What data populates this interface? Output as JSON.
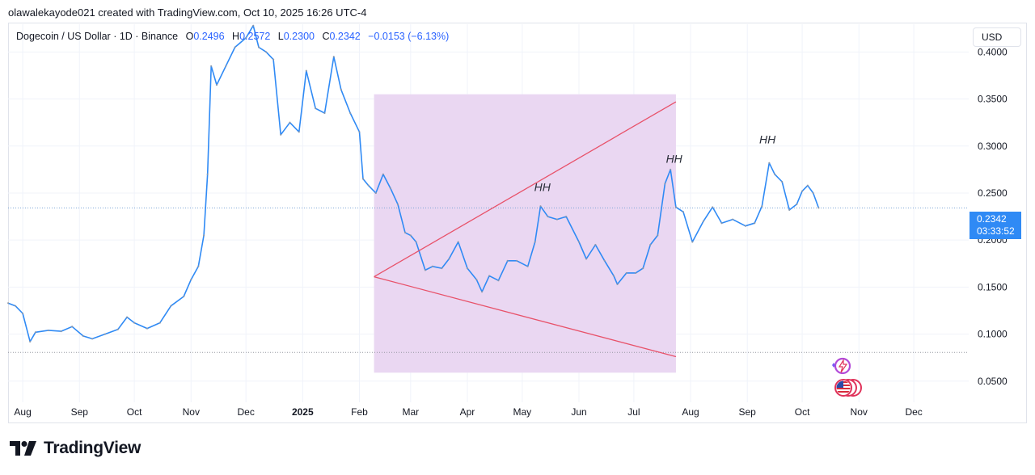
{
  "header": {
    "credit": "olawalekayode021 created with TradingView.com, Oct 10, 2025 16:26 UTC-4"
  },
  "legend": {
    "symbol": "Dogecoin / US Dollar · 1D · Binance",
    "open_label": "O",
    "open": "0.2496",
    "high_label": "H",
    "high": "0.2572",
    "low_label": "L",
    "low": "0.2300",
    "close_label": "C",
    "close": "0.2342",
    "change": "−0.0153 (−6.13%)"
  },
  "currency_button": "USD",
  "last_price": {
    "value": "0.2342",
    "countdown": "03:33:52"
  },
  "brand": {
    "wordmark": "TradingView"
  },
  "colors": {
    "candle_line": "#2f8af5",
    "wick_gray": "#9598a1",
    "zone_fill": "#e9d5f1",
    "trendline": "#e8526a",
    "price_tag": "#2f8af5"
  },
  "icons": [
    "tradingview-logo-icon",
    "spark-icon",
    "us-flag-icon"
  ],
  "chart_data": {
    "type": "line",
    "y_axis": {
      "ticks": [
        "0.4000",
        "0.3500",
        "0.3000",
        "0.2500",
        "0.2000",
        "0.1500",
        "0.1000",
        "0.0500"
      ],
      "range": [
        0.0275,
        0.4295
      ],
      "position": "right"
    },
    "x_axis": {
      "ticks": [
        "Aug",
        "Sep",
        "Oct",
        "Nov",
        "Dec",
        "2025",
        "Feb",
        "Mar",
        "Apr",
        "May",
        "Jun",
        "Jul",
        "Aug",
        "Sep",
        "Oct",
        "Nov",
        "Dec"
      ],
      "range": [
        "2024-07-24",
        "2025-12-31"
      ]
    },
    "series": [
      {
        "points": [
          [
            "2024-07-24",
            0.133
          ],
          [
            "2024-07-28",
            0.13
          ],
          [
            "2024-08-01",
            0.122
          ],
          [
            "2024-08-05",
            0.092
          ],
          [
            "2024-08-08",
            0.102
          ],
          [
            "2024-08-15",
            0.104
          ],
          [
            "2024-08-22",
            0.103
          ],
          [
            "2024-08-28",
            0.108
          ],
          [
            "2024-09-03",
            0.098
          ],
          [
            "2024-09-08",
            0.095
          ],
          [
            "2024-09-15",
            0.1
          ],
          [
            "2024-09-22",
            0.105
          ],
          [
            "2024-09-27",
            0.118
          ],
          [
            "2024-10-01",
            0.112
          ],
          [
            "2024-10-08",
            0.106
          ],
          [
            "2024-10-15",
            0.112
          ],
          [
            "2024-10-21",
            0.13
          ],
          [
            "2024-10-28",
            0.14
          ],
          [
            "2024-11-01",
            0.158
          ],
          [
            "2024-11-05",
            0.172
          ],
          [
            "2024-11-08",
            0.205
          ],
          [
            "2024-11-10",
            0.27
          ],
          [
            "2024-11-12",
            0.385
          ],
          [
            "2024-11-15",
            0.365
          ],
          [
            "2024-11-20",
            0.385
          ],
          [
            "2024-11-25",
            0.405
          ],
          [
            "2024-12-01",
            0.415
          ],
          [
            "2024-12-05",
            0.428
          ],
          [
            "2024-12-08",
            0.405
          ],
          [
            "2024-12-12",
            0.4
          ],
          [
            "2024-12-16",
            0.392
          ],
          [
            "2024-12-20",
            0.312
          ],
          [
            "2024-12-25",
            0.325
          ],
          [
            "2024-12-30",
            0.315
          ],
          [
            "2025-01-03",
            0.38
          ],
          [
            "2025-01-08",
            0.34
          ],
          [
            "2025-01-13",
            0.335
          ],
          [
            "2025-01-18",
            0.395
          ],
          [
            "2025-01-22",
            0.36
          ],
          [
            "2025-01-27",
            0.335
          ],
          [
            "2025-02-01",
            0.315
          ],
          [
            "2025-02-03",
            0.265
          ],
          [
            "2025-02-06",
            0.258
          ],
          [
            "2025-02-10",
            0.25
          ],
          [
            "2025-02-14",
            0.27
          ],
          [
            "2025-02-18",
            0.255
          ],
          [
            "2025-02-22",
            0.238
          ],
          [
            "2025-02-26",
            0.208
          ],
          [
            "2025-03-01",
            0.205
          ],
          [
            "2025-03-04",
            0.198
          ],
          [
            "2025-03-09",
            0.168
          ],
          [
            "2025-03-13",
            0.172
          ],
          [
            "2025-03-18",
            0.17
          ],
          [
            "2025-03-22",
            0.18
          ],
          [
            "2025-03-27",
            0.198
          ],
          [
            "2025-04-01",
            0.17
          ],
          [
            "2025-04-06",
            0.158
          ],
          [
            "2025-04-09",
            0.145
          ],
          [
            "2025-04-13",
            0.162
          ],
          [
            "2025-04-18",
            0.157
          ],
          [
            "2025-04-23",
            0.178
          ],
          [
            "2025-04-28",
            0.178
          ],
          [
            "2025-05-04",
            0.172
          ],
          [
            "2025-05-08",
            0.198
          ],
          [
            "2025-05-11",
            0.236
          ],
          [
            "2025-05-15",
            0.225
          ],
          [
            "2025-05-20",
            0.222
          ],
          [
            "2025-05-25",
            0.225
          ],
          [
            "2025-06-01",
            0.198
          ],
          [
            "2025-06-05",
            0.18
          ],
          [
            "2025-06-10",
            0.195
          ],
          [
            "2025-06-15",
            0.178
          ],
          [
            "2025-06-20",
            0.162
          ],
          [
            "2025-06-22",
            0.153
          ],
          [
            "2025-06-27",
            0.165
          ],
          [
            "2025-07-02",
            0.165
          ],
          [
            "2025-07-06",
            0.17
          ],
          [
            "2025-07-10",
            0.195
          ],
          [
            "2025-07-14",
            0.205
          ],
          [
            "2025-07-18",
            0.26
          ],
          [
            "2025-07-21",
            0.275
          ],
          [
            "2025-07-24",
            0.235
          ],
          [
            "2025-07-28",
            0.23
          ],
          [
            "2025-08-02",
            0.198
          ],
          [
            "2025-08-08",
            0.22
          ],
          [
            "2025-08-13",
            0.235
          ],
          [
            "2025-08-18",
            0.218
          ],
          [
            "2025-08-24",
            0.222
          ],
          [
            "2025-08-31",
            0.215
          ],
          [
            "2025-09-05",
            0.218
          ],
          [
            "2025-09-09",
            0.236
          ],
          [
            "2025-09-13",
            0.282
          ],
          [
            "2025-09-16",
            0.27
          ],
          [
            "2025-09-20",
            0.262
          ],
          [
            "2025-09-24",
            0.232
          ],
          [
            "2025-09-28",
            0.238
          ],
          [
            "2025-10-01",
            0.252
          ],
          [
            "2025-10-04",
            0.258
          ],
          [
            "2025-10-07",
            0.25
          ],
          [
            "2025-10-10",
            0.2342
          ]
        ]
      }
    ],
    "annotations": [
      {
        "type": "rectangle",
        "x_range": [
          "2025-02-09",
          "2025-07-24"
        ],
        "y_range": [
          0.059,
          0.355
        ]
      },
      {
        "type": "trendline",
        "from": [
          "2025-02-09",
          0.161
        ],
        "to": [
          "2025-07-24",
          0.347
        ]
      },
      {
        "type": "trendline",
        "from": [
          "2025-02-09",
          0.161
        ],
        "to": [
          "2025-07-24",
          0.076
        ]
      },
      {
        "type": "label",
        "text": "HH",
        "at": [
          "2025-05-12",
          0.252
        ]
      },
      {
        "type": "label",
        "text": "HH",
        "at": [
          "2025-07-23",
          0.282
        ]
      },
      {
        "type": "label",
        "text": "HH",
        "at": [
          "2025-09-12",
          0.303
        ]
      },
      {
        "type": "horizontal_line",
        "y": 0.0805,
        "style": "dotted"
      },
      {
        "type": "horizontal_line",
        "y": 0.2342,
        "style": "dotted"
      }
    ],
    "grid": true,
    "legend": "top-left"
  }
}
